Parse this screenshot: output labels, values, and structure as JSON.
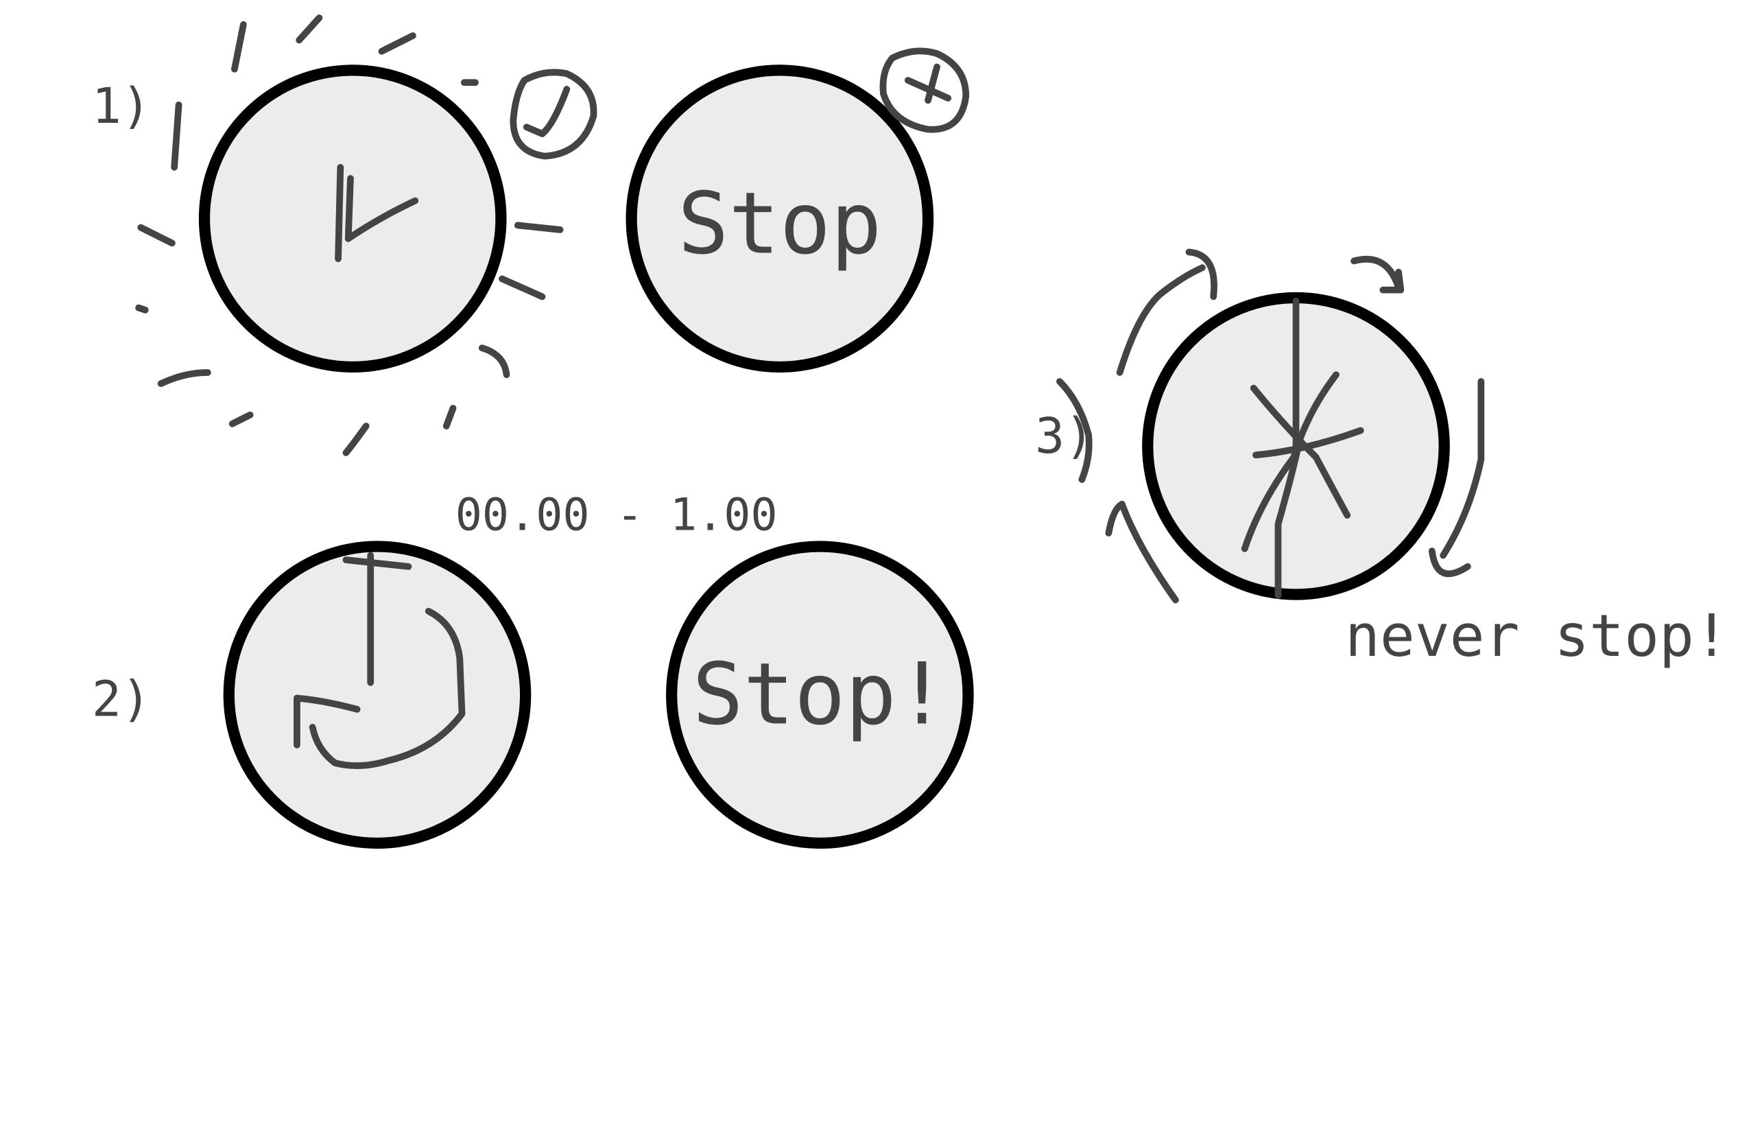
{
  "sketches": [
    {
      "number": "1)"
    },
    {
      "label": "Stop"
    },
    {
      "number": "2)",
      "caption": "00.00 - 1.00"
    },
    {
      "label": "Stop!"
    },
    {
      "number": "3)",
      "caption": "never stop!"
    }
  ]
}
